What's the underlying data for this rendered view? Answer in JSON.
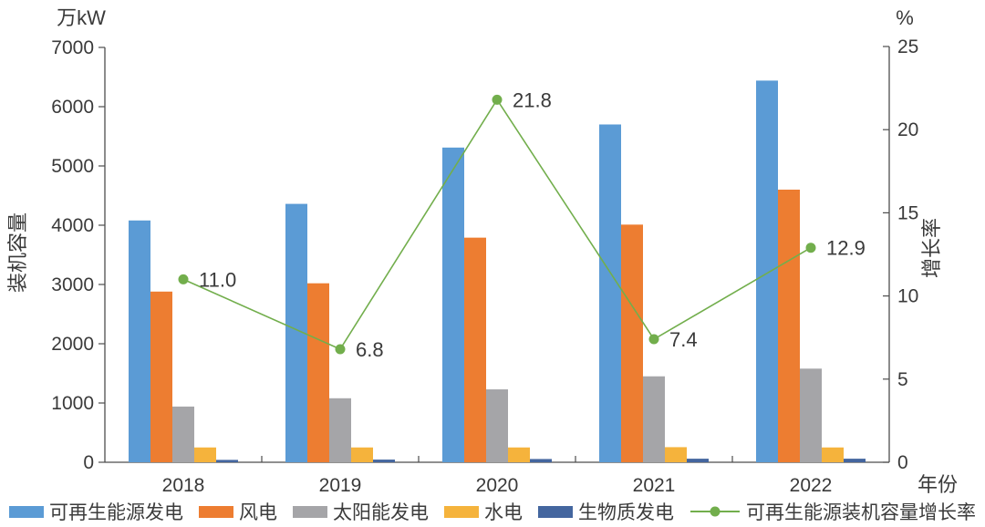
{
  "chart_data": {
    "type": "bar+line",
    "title": "",
    "categories": [
      "2018",
      "2019",
      "2020",
      "2021",
      "2022"
    ],
    "series": [
      {
        "key": "renewable",
        "name": "可再生能源发电",
        "type": "bar",
        "axis": "left",
        "color": "#5B9BD5",
        "values": [
          4080,
          4360,
          5310,
          5700,
          6440
        ]
      },
      {
        "key": "wind",
        "name": "风电",
        "type": "bar",
        "axis": "left",
        "color": "#ED7D31",
        "values": [
          2880,
          3020,
          3790,
          4010,
          4600
        ]
      },
      {
        "key": "solar",
        "name": "太阳能发电",
        "type": "bar",
        "axis": "left",
        "color": "#A5A5A8",
        "values": [
          940,
          1080,
          1230,
          1450,
          1580
        ]
      },
      {
        "key": "hydro",
        "name": "水电",
        "type": "bar",
        "axis": "left",
        "color": "#F5B33C",
        "values": [
          250,
          250,
          250,
          255,
          250
        ]
      },
      {
        "key": "biomass",
        "name": "生物质发电",
        "type": "bar",
        "axis": "left",
        "color": "#44669F",
        "values": [
          40,
          45,
          55,
          60,
          60
        ]
      },
      {
        "key": "growth",
        "name": "可再生能源装机容量增长率",
        "type": "line",
        "axis": "right",
        "color": "#72AE4C",
        "values": [
          11.0,
          6.8,
          21.8,
          7.4,
          12.9
        ],
        "point_labels": [
          "11.0",
          "6.8",
          "21.8",
          "7.4",
          "12.9"
        ]
      }
    ],
    "left_axis": {
      "title": "万kW",
      "label": "装机容量",
      "min": 0,
      "max": 7000,
      "step": 1000,
      "ticks": [
        "0",
        "1000",
        "2000",
        "3000",
        "4000",
        "5000",
        "6000",
        "7000"
      ]
    },
    "right_axis": {
      "title": "%",
      "label": "增长率",
      "min": 0,
      "max": 25,
      "step": 5,
      "ticks": [
        "0",
        "5",
        "10",
        "15",
        "20",
        "25"
      ]
    },
    "x_axis": {
      "label": "年份"
    },
    "grid": false,
    "legend_position": "bottom"
  }
}
